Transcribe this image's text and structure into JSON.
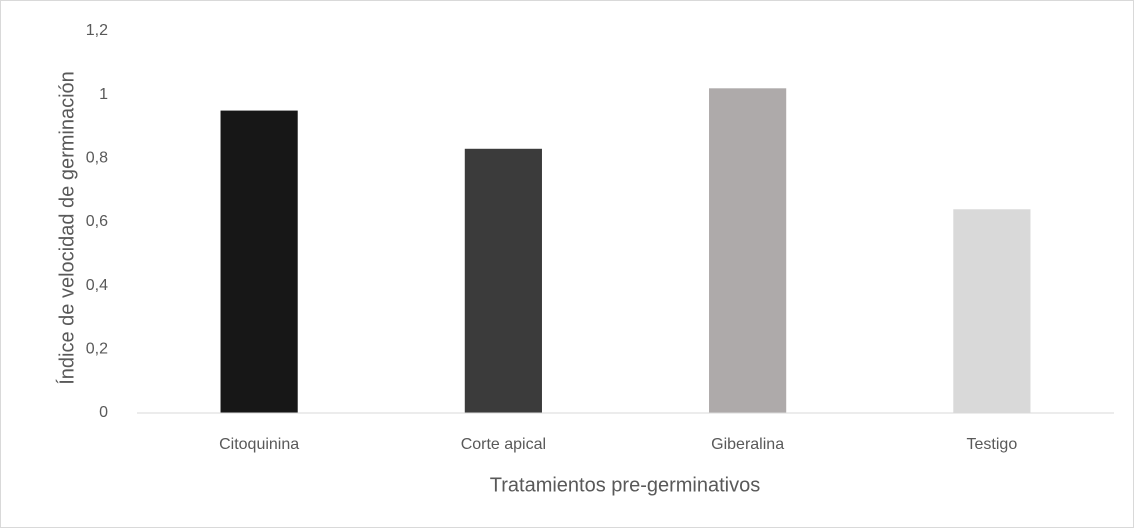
{
  "chart_data": {
    "type": "bar",
    "categories": [
      "Citoquinina",
      "Corte apical",
      "Giberalina",
      "Testigo"
    ],
    "values": [
      0.95,
      0.83,
      1.02,
      0.64
    ],
    "colors": [
      "#171717",
      "#3b3b3b",
      "#aeaaaa",
      "#d9d9d9"
    ],
    "xlabel": "Tratamientos pre-germinativos",
    "ylabel": "Índice de velocidad de germinación",
    "ylim": [
      0,
      1.2
    ],
    "yticks": [
      0,
      {
        "value": 0.2,
        "label": "0,2"
      },
      {
        "value": 0.4,
        "label": "0,4"
      },
      {
        "value": 0.6,
        "label": "0,6"
      },
      {
        "value": 0.8,
        "label": "0,8"
      },
      1,
      {
        "value": 1.2,
        "label": "1,2"
      }
    ],
    "grid": false
  }
}
